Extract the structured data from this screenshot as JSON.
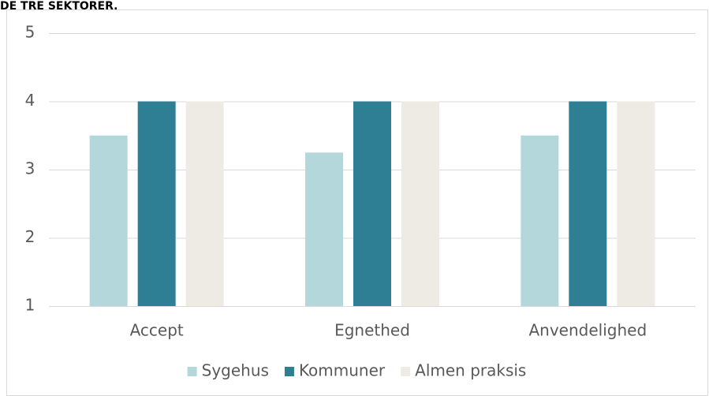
{
  "chart_data": {
    "type": "bar",
    "title": "DE TRE SEKTORER.",
    "categories": [
      "Accept",
      "Egnethed",
      "Anvendelighed"
    ],
    "series": [
      {
        "name": "Sygehus",
        "color": "#b4d7dc",
        "values": [
          3.5,
          3.25,
          3.5
        ]
      },
      {
        "name": "Kommuner",
        "color": "#2e7f93",
        "values": [
          4,
          4,
          4
        ]
      },
      {
        "name": "Almen praksis",
        "color": "#eeebe4",
        "values": [
          4,
          4,
          4
        ]
      }
    ],
    "ylim": [
      1,
      5
    ],
    "yticks": [
      1,
      2,
      3,
      4,
      5
    ],
    "grid": true,
    "legend": "bottom"
  }
}
